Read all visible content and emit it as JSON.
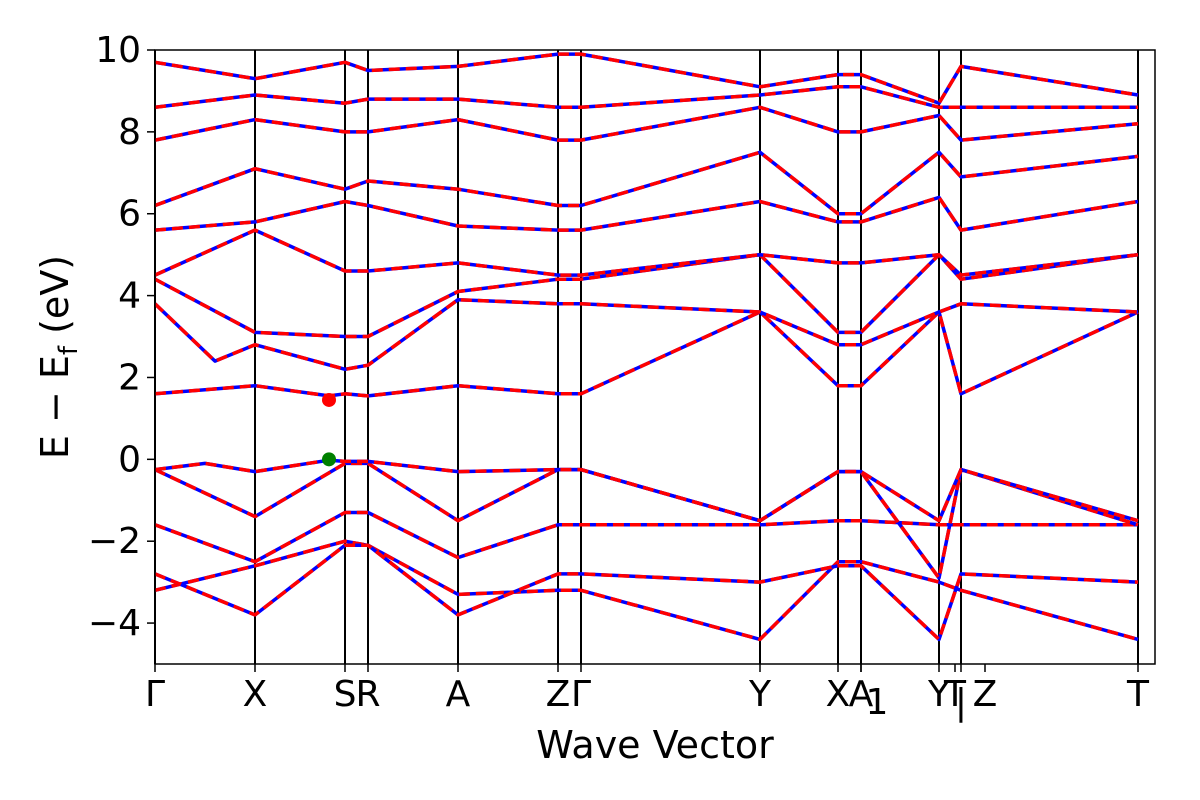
{
  "chart_data": {
    "type": "line",
    "title": "",
    "xlabel": "Wave Vector",
    "ylabel_parts": {
      "main": "E − E",
      "sub": "f",
      "unit": " (eV)"
    },
    "ylim": [
      -5,
      10
    ],
    "yticks": [
      -4,
      -2,
      0,
      2,
      4,
      6,
      8,
      10
    ],
    "ytick_labels": [
      "−4",
      "−2",
      "0",
      "2",
      "4",
      "6",
      "8",
      "10"
    ],
    "kpath_length": 1.0,
    "kpoints": [
      {
        "label": "Γ",
        "x": 0.0
      },
      {
        "label": "X",
        "x": 0.1
      },
      {
        "label": "S",
        "x": 0.19
      },
      {
        "label": "R",
        "x": 0.213
      },
      {
        "label": "A",
        "x": 0.303
      },
      {
        "label": "Z",
        "x": 0.403
      },
      {
        "label": "Γ",
        "x": 0.426
      },
      {
        "label": "Y",
        "x": 0.605
      },
      {
        "label": "X",
        "x": 0.683
      },
      {
        "label": "A",
        "x": 0.706
      },
      {
        "label": "1",
        "x": 0.706
      },
      {
        "label": "Y",
        "x": 0.784
      },
      {
        "label": "T",
        "x": 0.8
      },
      {
        "label": "|",
        "x": 0.806
      },
      {
        "label": "Z",
        "x": 0.83
      },
      {
        "label": "T",
        "x": 0.983
      }
    ],
    "kpoint_lines": [
      0.0,
      0.1,
      0.19,
      0.213,
      0.303,
      0.403,
      0.426,
      0.605,
      0.683,
      0.706,
      0.784,
      0.806,
      0.983
    ],
    "vbm": {
      "x": 0.174,
      "energy": 0.0,
      "color": "#008000"
    },
    "cbm": {
      "x": 0.174,
      "energy": 1.45,
      "color": "#ff0000"
    },
    "series_colors": {
      "calc_a": "#0000ff",
      "calc_b": "#ff0000"
    },
    "bands": [
      {
        "x": [
          0,
          0.1,
          0.19,
          0.213,
          0.303,
          0.403,
          0.426,
          0.605,
          0.683,
          0.706,
          0.784,
          0.806,
          0.983
        ],
        "y": [
          -3.2,
          -2.6,
          -2.0,
          -2.1,
          -3.3,
          -3.2,
          -3.2,
          -4.4,
          -2.5,
          -2.5,
          -3.0,
          -3.2,
          -4.4
        ]
      },
      {
        "x": [
          0,
          0.1,
          0.19,
          0.213,
          0.303,
          0.403,
          0.426,
          0.605,
          0.683,
          0.706,
          0.784,
          0.806,
          0.983
        ],
        "y": [
          -2.8,
          -3.8,
          -2.1,
          -2.1,
          -3.8,
          -2.8,
          -2.8,
          -3.0,
          -2.6,
          -2.6,
          -4.4,
          -2.8,
          -3.0
        ]
      },
      {
        "x": [
          0,
          0.1,
          0.19,
          0.213,
          0.303,
          0.403,
          0.426,
          0.605,
          0.683,
          0.706,
          0.784,
          0.806,
          0.983
        ],
        "y": [
          -1.6,
          -2.5,
          -1.3,
          -1.3,
          -2.4,
          -1.6,
          -1.6,
          -1.6,
          -1.5,
          -1.5,
          -1.6,
          -1.6,
          -1.6
        ]
      },
      {
        "x": [
          0,
          0.1,
          0.19,
          0.213,
          0.303,
          0.403,
          0.426,
          0.605,
          0.683,
          0.706,
          0.784,
          0.806,
          0.983
        ],
        "y": [
          -0.25,
          -1.4,
          -0.1,
          -0.1,
          -1.5,
          -0.25,
          -0.25,
          -1.5,
          -0.3,
          -0.3,
          -2.9,
          -0.25,
          -1.6
        ]
      },
      {
        "x": [
          0,
          0.05,
          0.1,
          0.174,
          0.19,
          0.213,
          0.303,
          0.403,
          0.426,
          0.605,
          0.683,
          0.706,
          0.784,
          0.806,
          0.983
        ],
        "y": [
          -0.25,
          -0.1,
          -0.3,
          -0.02,
          -0.05,
          -0.05,
          -0.3,
          -0.25,
          -0.25,
          -1.5,
          -0.3,
          -0.3,
          -1.5,
          -0.25,
          -1.5
        ]
      },
      {
        "x": [
          0,
          0.1,
          0.174,
          0.19,
          0.213,
          0.303,
          0.403,
          0.426,
          0.605,
          0.683,
          0.706,
          0.784,
          0.806,
          0.983
        ],
        "y": [
          1.6,
          1.8,
          1.55,
          1.6,
          1.55,
          1.8,
          1.6,
          1.6,
          3.6,
          1.8,
          1.8,
          3.6,
          1.6,
          3.6
        ]
      },
      {
        "x": [
          0,
          0.06,
          0.1,
          0.19,
          0.213,
          0.303,
          0.403,
          0.426,
          0.605,
          0.683,
          0.706,
          0.784,
          0.806,
          0.983
        ],
        "y": [
          3.8,
          2.4,
          2.8,
          2.2,
          2.3,
          3.9,
          3.8,
          3.8,
          3.6,
          2.8,
          2.8,
          3.6,
          3.8,
          3.6
        ]
      },
      {
        "x": [
          0,
          0.1,
          0.19,
          0.213,
          0.303,
          0.403,
          0.426,
          0.605,
          0.683,
          0.706,
          0.784,
          0.806,
          0.983
        ],
        "y": [
          4.4,
          3.1,
          3.0,
          3.0,
          4.1,
          4.4,
          4.4,
          5.0,
          3.1,
          3.1,
          5.0,
          4.4,
          5.0
        ]
      },
      {
        "x": [
          0,
          0.1,
          0.19,
          0.213,
          0.303,
          0.403,
          0.426,
          0.605,
          0.683,
          0.706,
          0.784,
          0.806,
          0.983
        ],
        "y": [
          4.5,
          5.6,
          4.6,
          4.6,
          4.8,
          4.5,
          4.5,
          5.0,
          4.8,
          4.8,
          5.0,
          4.5,
          5.0
        ]
      },
      {
        "x": [
          0,
          0.1,
          0.19,
          0.213,
          0.303,
          0.403,
          0.426,
          0.605,
          0.683,
          0.706,
          0.784,
          0.806,
          0.983
        ],
        "y": [
          5.6,
          5.8,
          6.3,
          6.2,
          5.7,
          5.6,
          5.6,
          6.3,
          5.8,
          5.8,
          6.4,
          5.6,
          6.3
        ]
      },
      {
        "x": [
          0,
          0.1,
          0.19,
          0.213,
          0.303,
          0.403,
          0.426,
          0.605,
          0.683,
          0.706,
          0.784,
          0.806,
          0.983
        ],
        "y": [
          6.2,
          7.1,
          6.6,
          6.8,
          6.6,
          6.2,
          6.2,
          7.5,
          6.0,
          6.0,
          7.5,
          6.9,
          7.4
        ]
      },
      {
        "x": [
          0,
          0.1,
          0.19,
          0.213,
          0.303,
          0.403,
          0.426,
          0.605,
          0.683,
          0.706,
          0.784,
          0.806,
          0.983
        ],
        "y": [
          7.8,
          8.3,
          8.0,
          8.0,
          8.3,
          7.8,
          7.8,
          8.6,
          8.0,
          8.0,
          8.4,
          7.8,
          8.2
        ]
      },
      {
        "x": [
          0,
          0.1,
          0.19,
          0.213,
          0.303,
          0.403,
          0.426,
          0.605,
          0.683,
          0.706,
          0.784,
          0.806,
          0.983
        ],
        "y": [
          8.6,
          8.9,
          8.7,
          8.8,
          8.8,
          8.6,
          8.6,
          8.9,
          9.1,
          9.1,
          8.6,
          8.6,
          8.6
        ]
      },
      {
        "x": [
          0,
          0.1,
          0.19,
          0.213,
          0.303,
          0.403,
          0.426,
          0.605,
          0.683,
          0.706,
          0.784,
          0.806,
          0.983
        ],
        "y": [
          9.7,
          9.3,
          9.7,
          9.5,
          9.6,
          9.9,
          9.9,
          9.1,
          9.4,
          9.4,
          8.7,
          9.6,
          8.9
        ]
      }
    ]
  }
}
